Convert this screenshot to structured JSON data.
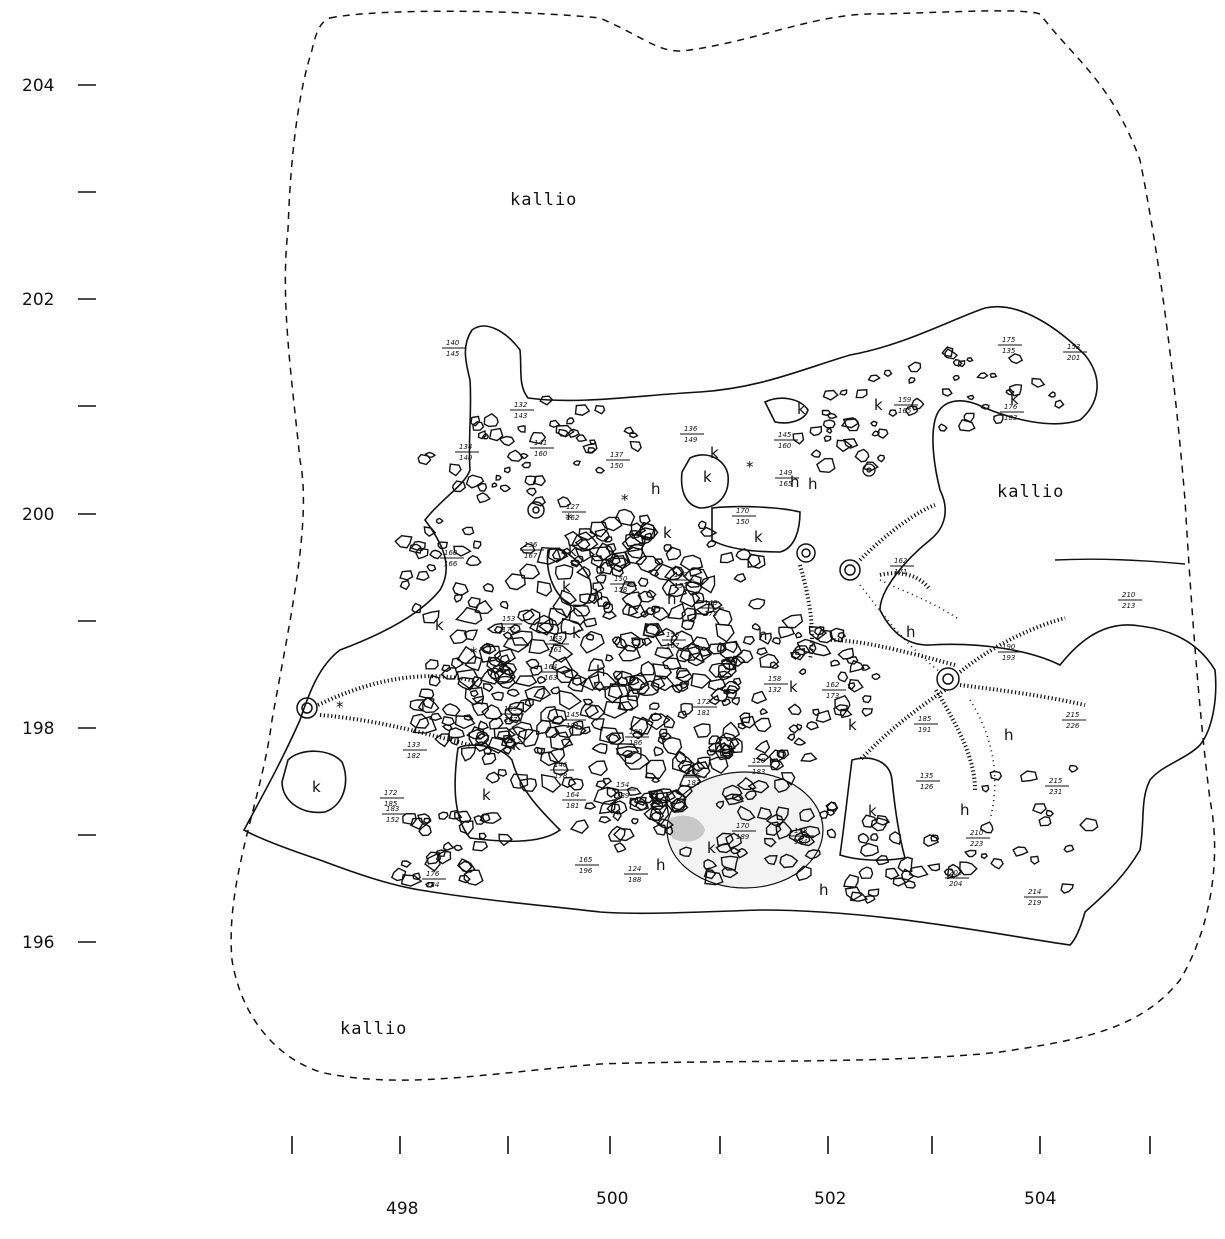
{
  "axes": {
    "x_ticks": [
      "498",
      "500",
      "502",
      "504"
    ],
    "y_ticks": [
      "204",
      "202",
      "200",
      "198",
      "196"
    ]
  },
  "labels": {
    "bedrock": [
      "kallio",
      "kallio",
      "kallio"
    ]
  },
  "symbols": {
    "stone": [
      "k",
      "k",
      "k",
      "k",
      "k",
      "k",
      "k",
      "k",
      "k",
      "k",
      "k",
      "k",
      "k",
      "k",
      "k",
      "k",
      "k",
      "k"
    ],
    "humus": [
      "h",
      "h",
      "h",
      "h",
      "h",
      "h",
      "h",
      "h",
      "h",
      "h",
      "h",
      "h"
    ]
  },
  "levels": [
    [
      "140",
      "145"
    ],
    [
      "132",
      "143"
    ],
    [
      "134",
      "140"
    ],
    [
      "141",
      "160"
    ],
    [
      "137",
      "150"
    ],
    [
      "136",
      "149"
    ],
    [
      "145",
      "160"
    ],
    [
      "149",
      "165"
    ],
    [
      "159",
      "165"
    ],
    [
      "175",
      "135"
    ],
    [
      "153",
      "201"
    ],
    [
      "176",
      "183"
    ],
    [
      "127",
      "162"
    ],
    [
      "170",
      "150"
    ],
    [
      "136",
      "167"
    ],
    [
      "160",
      "166"
    ],
    [
      "150",
      "158"
    ],
    [
      "140",
      "152"
    ],
    [
      "153",
      "172"
    ],
    [
      "148",
      "175"
    ],
    [
      "163",
      "161"
    ],
    [
      "164",
      "163"
    ],
    [
      "156",
      "167"
    ],
    [
      "162",
      "171"
    ],
    [
      "190",
      "193"
    ],
    [
      "158",
      "132"
    ],
    [
      "162",
      "173"
    ],
    [
      "172",
      "181"
    ],
    [
      "169",
      "177"
    ],
    [
      "145",
      "181"
    ],
    [
      "150",
      "186"
    ],
    [
      "133",
      "182"
    ],
    [
      "185",
      "191"
    ],
    [
      "146",
      "178"
    ],
    [
      "164",
      "181"
    ],
    [
      "154",
      "189"
    ],
    [
      "162",
      "183"
    ],
    [
      "120",
      "183"
    ],
    [
      "135",
      "126"
    ],
    [
      "215",
      "226"
    ],
    [
      "215",
      "231"
    ],
    [
      "183",
      "152"
    ],
    [
      "172",
      "185"
    ],
    [
      "170",
      "189"
    ],
    [
      "178",
      "184"
    ],
    [
      "210",
      "223"
    ],
    [
      "165",
      "196"
    ],
    [
      "124",
      "188"
    ],
    [
      "203",
      "204"
    ],
    [
      "176",
      "184"
    ],
    [
      "214",
      "219"
    ],
    [
      "210",
      "213"
    ]
  ]
}
